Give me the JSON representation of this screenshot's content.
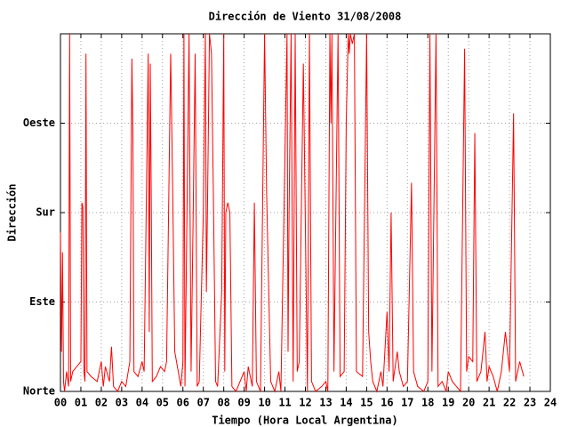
{
  "chart_data": {
    "type": "line",
    "title": "Dirección de Viento 31/08/2008",
    "xlabel": "Tiempo (Hora Local Argentina)",
    "ylabel": "Dirección",
    "xlim": [
      0,
      24
    ],
    "ylim": [
      0,
      360
    ],
    "xticks": [
      {
        "value": 0,
        "label": "00"
      },
      {
        "value": 1,
        "label": "01"
      },
      {
        "value": 2,
        "label": "02"
      },
      {
        "value": 3,
        "label": "03"
      },
      {
        "value": 4,
        "label": "04"
      },
      {
        "value": 5,
        "label": "05"
      },
      {
        "value": 6,
        "label": "06"
      },
      {
        "value": 7,
        "label": "07"
      },
      {
        "value": 8,
        "label": "08"
      },
      {
        "value": 9,
        "label": "09"
      },
      {
        "value": 10,
        "label": "10"
      },
      {
        "value": 11,
        "label": "11"
      },
      {
        "value": 12,
        "label": "12"
      },
      {
        "value": 13,
        "label": "13"
      },
      {
        "value": 14,
        "label": "14"
      },
      {
        "value": 15,
        "label": "15"
      },
      {
        "value": 16,
        "label": "16"
      },
      {
        "value": 17,
        "label": "17"
      },
      {
        "value": 18,
        "label": "18"
      },
      {
        "value": 19,
        "label": "19"
      },
      {
        "value": 20,
        "label": "20"
      },
      {
        "value": 21,
        "label": "21"
      },
      {
        "value": 22,
        "label": "22"
      },
      {
        "value": 23,
        "label": "23"
      },
      {
        "value": 24,
        "label": "24"
      }
    ],
    "yticks": [
      {
        "value": 0,
        "label": "Norte"
      },
      {
        "value": 90,
        "label": "Este"
      },
      {
        "value": 180,
        "label": "Sur"
      },
      {
        "value": 270,
        "label": "Oeste"
      }
    ],
    "grid": true,
    "series": [
      {
        "color": "#ff0000",
        "x": [
          0.0,
          0.05,
          0.1,
          0.15,
          0.2,
          0.3,
          0.4,
          0.45,
          0.5,
          0.6,
          0.8,
          1.0,
          1.05,
          1.1,
          1.15,
          1.2,
          1.25,
          1.3,
          1.5,
          1.8,
          2.0,
          2.1,
          2.2,
          2.4,
          2.5,
          2.6,
          2.8,
          3.0,
          3.2,
          3.4,
          3.5,
          3.55,
          3.6,
          3.8,
          4.0,
          4.1,
          4.3,
          4.35,
          4.4,
          4.45,
          4.5,
          4.7,
          4.9,
          5.1,
          5.2,
          5.4,
          5.5,
          5.6,
          5.9,
          6.0,
          6.05,
          6.1,
          6.3,
          6.35,
          6.4,
          6.5,
          6.6,
          6.7,
          6.8,
          7.0,
          7.1,
          7.15,
          7.2,
          7.3,
          7.4,
          7.5,
          7.6,
          7.7,
          7.9,
          8.0,
          8.05,
          8.1,
          8.2,
          8.3,
          8.4,
          8.6,
          8.8,
          9.0,
          9.1,
          9.2,
          9.4,
          9.5,
          9.6,
          9.8,
          10.0,
          10.1,
          10.3,
          10.5,
          10.7,
          10.8,
          11.0,
          11.1,
          11.15,
          11.2,
          11.3,
          11.4,
          11.5,
          11.6,
          11.7,
          11.9,
          12.1,
          12.2,
          12.25,
          12.3,
          12.5,
          12.8,
          13.0,
          13.1,
          13.2,
          13.25,
          13.3,
          13.4,
          13.6,
          13.7,
          13.9,
          14.0,
          14.1,
          14.15,
          14.2,
          14.3,
          14.4,
          14.5,
          14.8,
          15.0,
          15.1,
          15.2,
          15.3,
          15.5,
          15.7,
          15.8,
          16.0,
          16.1,
          16.2,
          16.3,
          16.5,
          16.6,
          16.8,
          17.0,
          17.2,
          17.3,
          17.5,
          17.8,
          18.0,
          18.1,
          18.2,
          18.4,
          18.5,
          18.7,
          18.9,
          19.0,
          19.2,
          19.4,
          19.6,
          19.8,
          19.9,
          20.0,
          20.2,
          20.3,
          20.4,
          20.6,
          20.8,
          20.9,
          21.0,
          21.2,
          21.4,
          21.6,
          21.8,
          22.0,
          22.2,
          22.3,
          22.5,
          22.7
        ],
        "values": [
          160,
          40,
          140,
          10,
          0,
          20,
          5,
          360,
          10,
          20,
          25,
          30,
          190,
          185,
          20,
          10,
          340,
          20,
          15,
          10,
          30,
          5,
          25,
          10,
          45,
          5,
          0,
          10,
          5,
          30,
          335,
          255,
          20,
          15,
          30,
          20,
          340,
          60,
          330,
          190,
          10,
          15,
          25,
          20,
          30,
          340,
          200,
          40,
          5,
          30,
          360,
          5,
          360,
          180,
          20,
          175,
          340,
          5,
          10,
          180,
          360,
          100,
          180,
          360,
          340,
          185,
          10,
          5,
          100,
          360,
          20,
          180,
          190,
          180,
          5,
          0,
          10,
          20,
          0,
          25,
          5,
          190,
          10,
          0,
          360,
          200,
          10,
          0,
          20,
          0,
          240,
          360,
          40,
          180,
          360,
          10,
          360,
          20,
          30,
          330,
          0,
          360,
          180,
          10,
          0,
          5,
          10,
          0,
          360,
          270,
          360,
          20,
          360,
          15,
          20,
          270,
          360,
          340,
          360,
          350,
          360,
          20,
          15,
          360,
          60,
          30,
          10,
          0,
          20,
          5,
          80,
          20,
          180,
          10,
          40,
          20,
          5,
          10,
          210,
          20,
          5,
          0,
          10,
          360,
          20,
          360,
          5,
          10,
          0,
          20,
          10,
          5,
          0,
          345,
          20,
          35,
          30,
          260,
          10,
          20,
          60,
          10,
          25,
          15,
          0,
          20,
          60,
          20,
          280,
          10,
          30,
          15
        ]
      }
    ]
  }
}
